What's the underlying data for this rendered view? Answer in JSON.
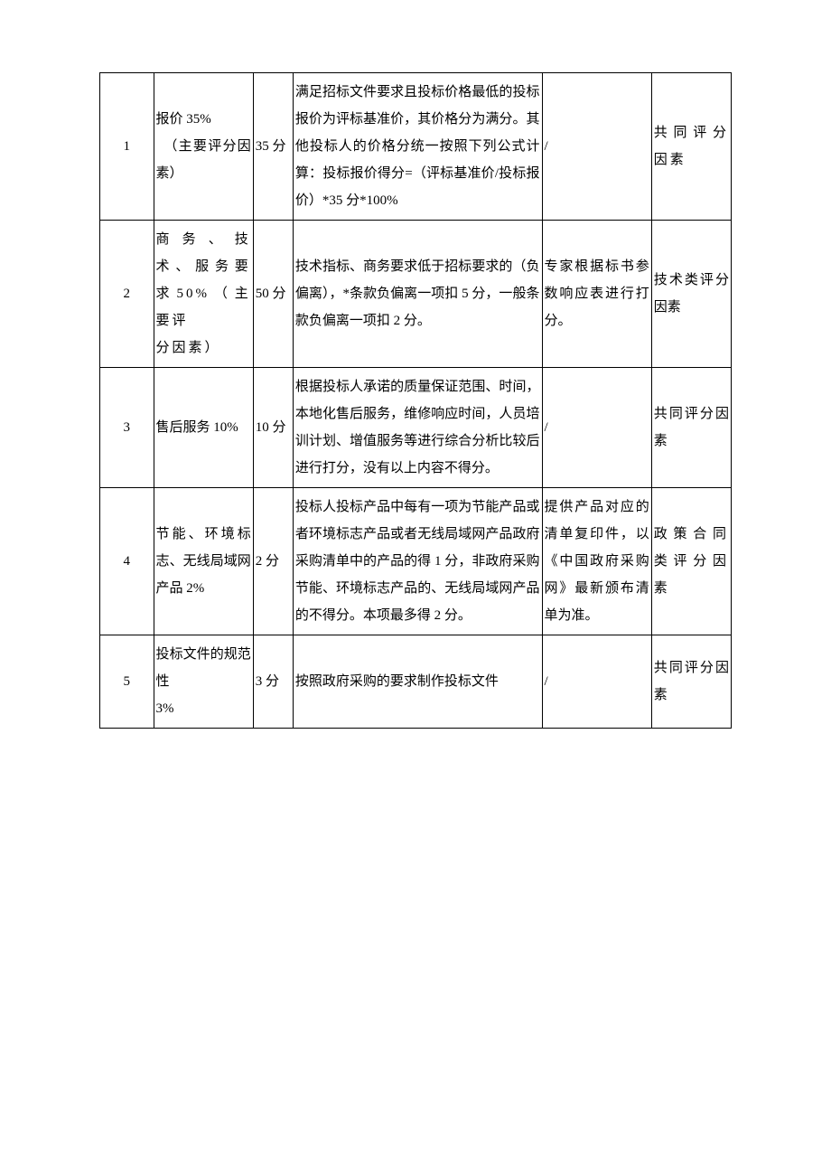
{
  "table": {
    "rows": [
      {
        "num": "1",
        "item": "报价 35%\n　（主要评分因素）",
        "score": "35 分",
        "desc": "满足招标文件要求且投标价格最低的投标报价为评标基准价，其价格分为满分。其他投标人的价格分统一按照下列公式计算：投标报价得分=（评标基准价/投标报价）*35 分*100%",
        "basis": "/",
        "category": "共同评分因素"
      },
      {
        "num": "2",
        "item": "商务、技术、服务要求50%（主要评\n分因素）",
        "score": "50 分",
        "desc": "技术指标、商务要求低于招标要求的（负偏离），*条款负偏离一项扣 5 分，一般条款负偏离一项扣 2 分。",
        "basis": "专家根据标书参数响应表进行打分。",
        "category": "技术类评分因素"
      },
      {
        "num": "3",
        "item": "售后服务 10%",
        "score": "10 分",
        "desc": "根据投标人承诺的质量保证范围、时间，本地化售后服务，维修响应时间，人员培训计划、增值服务等进行综合分析比较后进行打分，没有以上内容不得分。",
        "basis": "/",
        "category": "共同评分因素"
      },
      {
        "num": "4",
        "item": "节能、环境标志、无线局域网产品 2%",
        "score": "2 分",
        "desc": "投标人投标产品中每有一项为节能产品或者环境标志产品或者无线局域网产品政府采购清单中的产品的得 1 分，非政府采购节能、环境标志产品的、无线局域网产品的不得分。本项最多得 2 分。",
        "basis": "提供产品对应的清单复印件，以《中国政府采购网》最新颁布清单为准。",
        "category": "政策合同类评分因素"
      },
      {
        "num": "5",
        "item": "投标文件的规范性\n3%",
        "score": "3 分",
        "desc": "按照政府采购的要求制作投标文件",
        "basis": "/",
        "category": "共同评分因素"
      }
    ]
  }
}
